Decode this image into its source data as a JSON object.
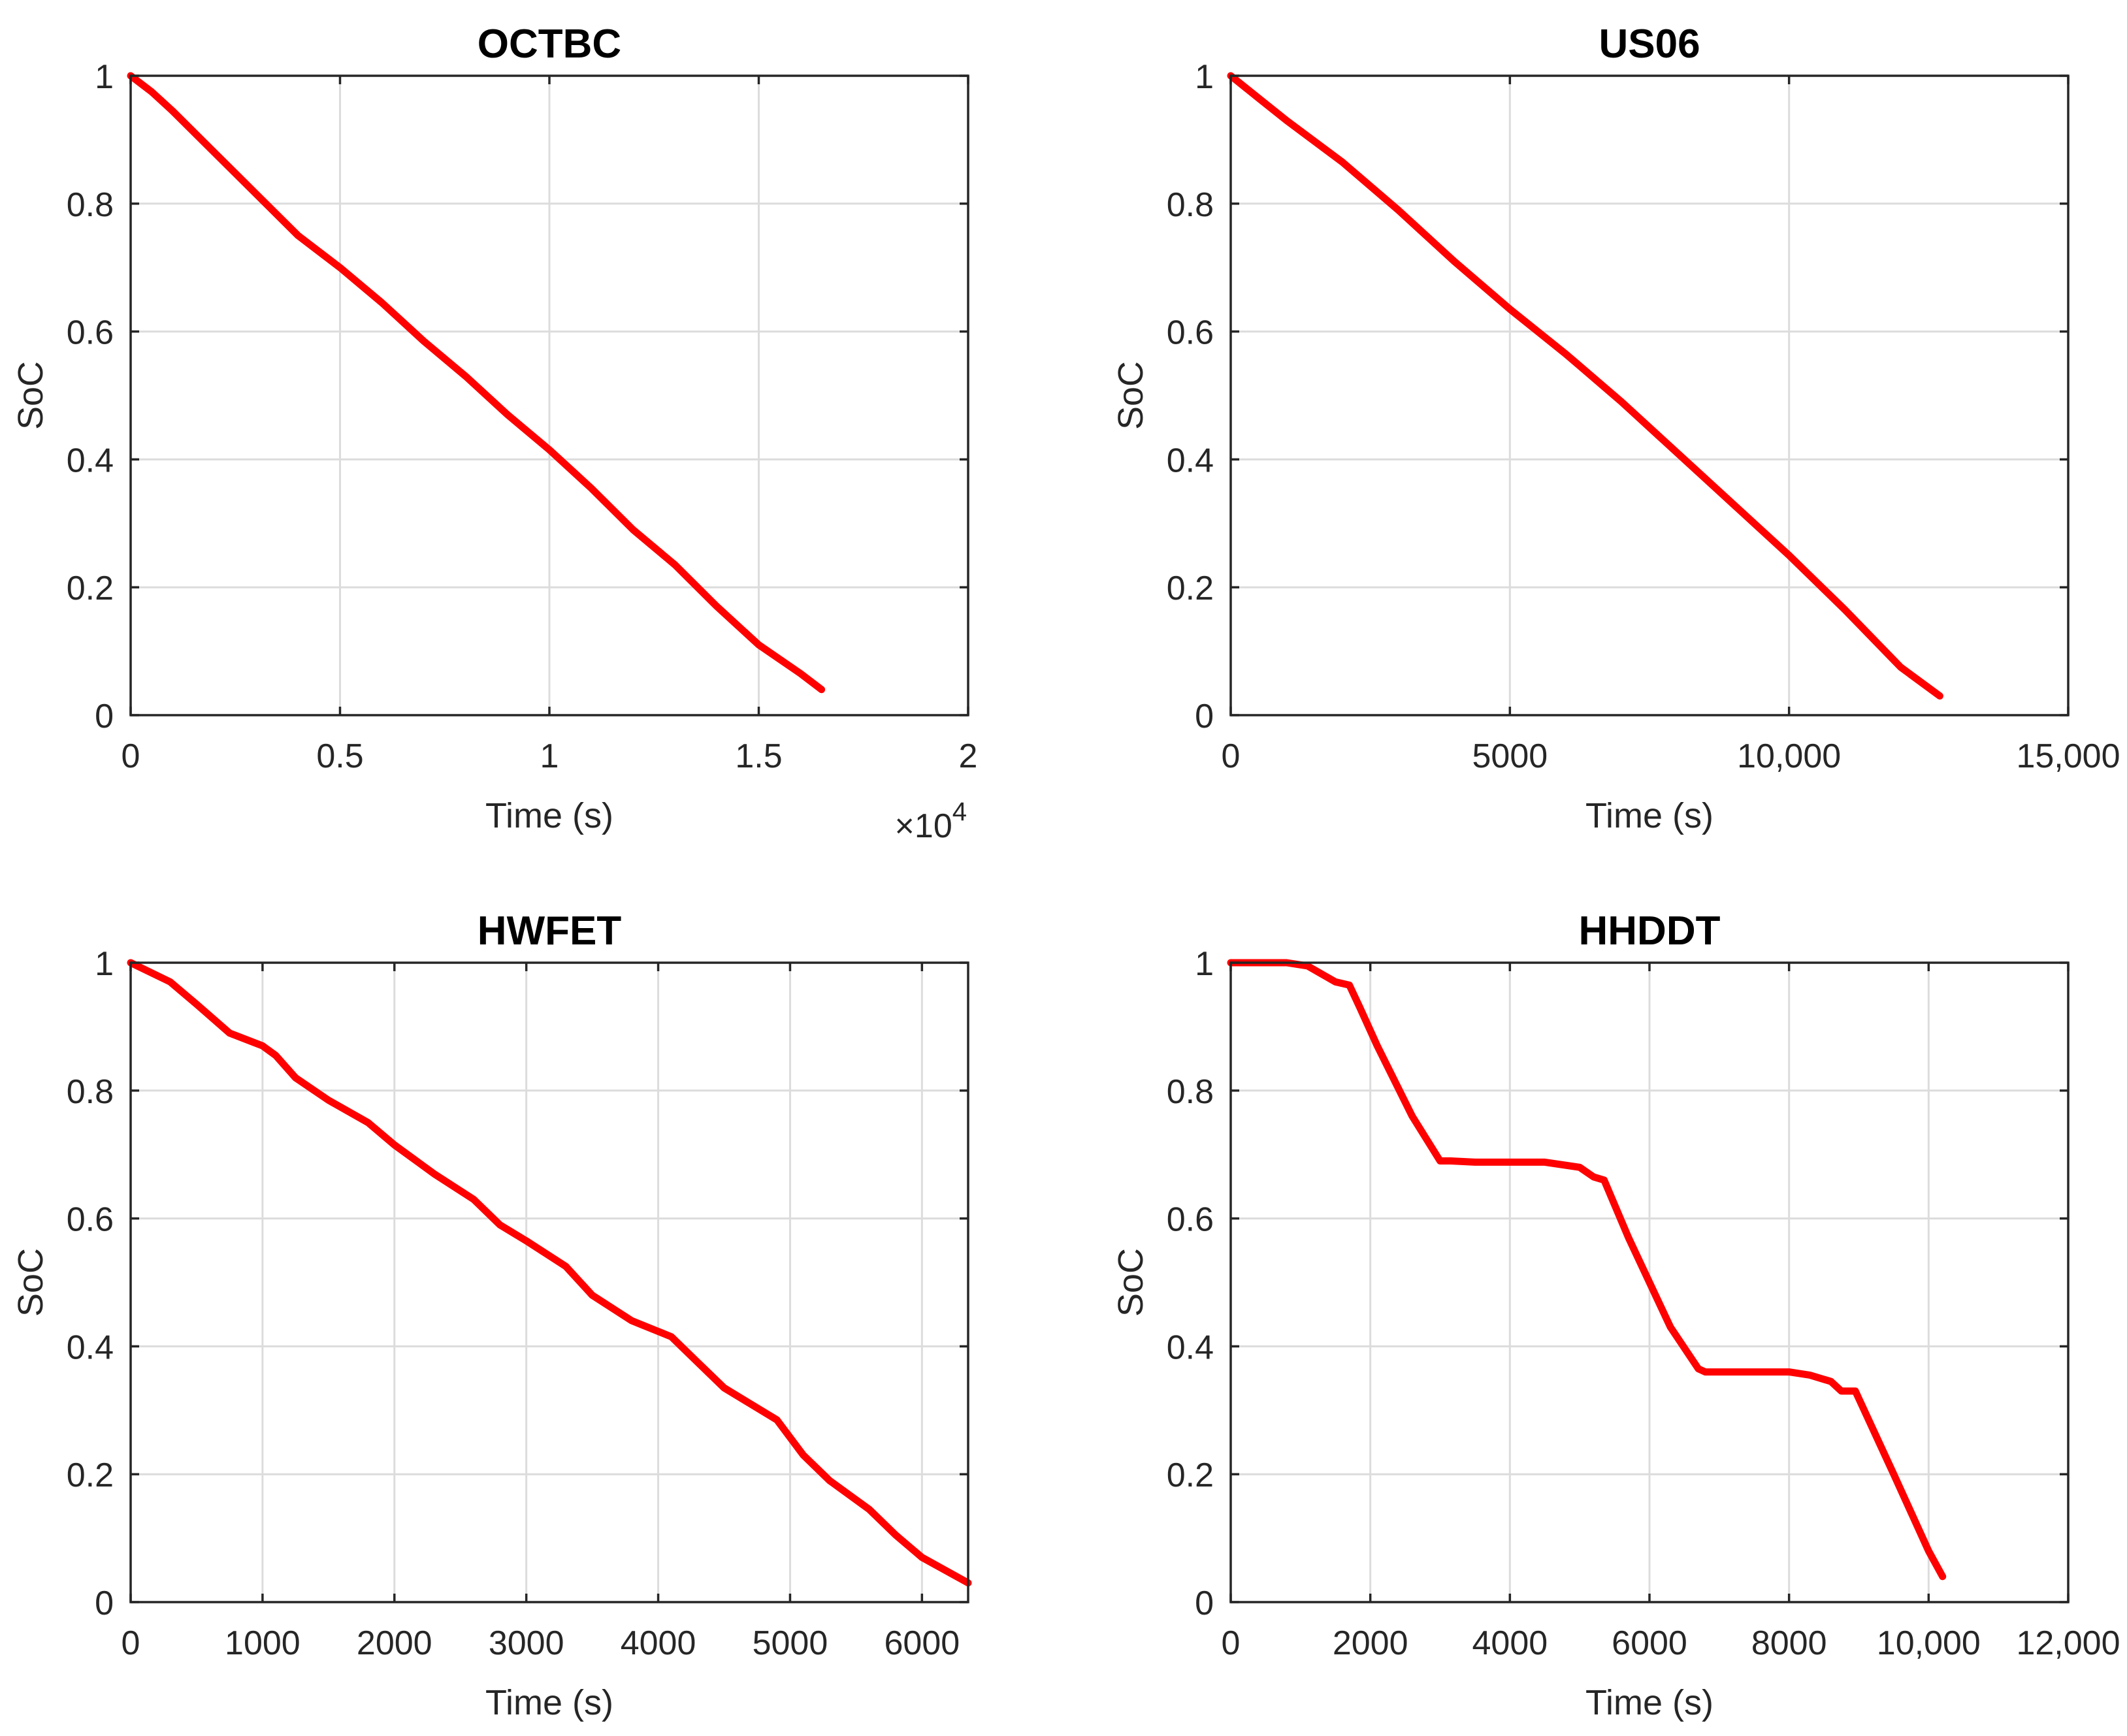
{
  "chart_data": [
    {
      "type": "line",
      "title": "OCTBC",
      "xlabel": "Time (s)",
      "ylabel": "SoC",
      "xlim": [
        0,
        20000
      ],
      "ylim": [
        0,
        1
      ],
      "x_ticks": [
        0,
        5000,
        10000,
        15000,
        20000
      ],
      "x_tick_labels": [
        "0",
        "0.5",
        "1",
        "1.5",
        "2"
      ],
      "x_exponent_label": "×10",
      "x_exponent_power": "4",
      "y_ticks": [
        0,
        0.2,
        0.4,
        0.6,
        0.8,
        1
      ],
      "y_tick_labels": [
        "0",
        "0.2",
        "0.4",
        "0.6",
        "0.8",
        "1"
      ],
      "grid": true,
      "color": "#ff0000",
      "series": [
        {
          "x": [
            0,
            500,
            1000,
            2000,
            3000,
            4000,
            5000,
            6000,
            7000,
            8000,
            9000,
            10000,
            11000,
            12000,
            13000,
            14000,
            15000,
            16000,
            16500
          ],
          "y": [
            1.0,
            0.975,
            0.945,
            0.88,
            0.815,
            0.75,
            0.7,
            0.645,
            0.585,
            0.53,
            0.47,
            0.415,
            0.355,
            0.29,
            0.235,
            0.17,
            0.11,
            0.065,
            0.04
          ]
        }
      ]
    },
    {
      "type": "line",
      "title": "US06",
      "xlabel": "Time (s)",
      "ylabel": "SoC",
      "xlim": [
        0,
        15000
      ],
      "ylim": [
        0,
        1
      ],
      "x_ticks": [
        0,
        5000,
        10000,
        15000
      ],
      "x_tick_labels": [
        "0",
        "5000",
        "10,000",
        "15,000"
      ],
      "y_ticks": [
        0,
        0.2,
        0.4,
        0.6,
        0.8,
        1
      ],
      "y_tick_labels": [
        "0",
        "0.2",
        "0.4",
        "0.6",
        "0.8",
        "1"
      ],
      "grid": true,
      "color": "#ff0000",
      "series": [
        {
          "x": [
            0,
            500,
            1000,
            2000,
            3000,
            4000,
            5000,
            6000,
            7000,
            8000,
            9000,
            10000,
            11000,
            12000,
            12700
          ],
          "y": [
            1.0,
            0.965,
            0.93,
            0.865,
            0.79,
            0.71,
            0.635,
            0.565,
            0.49,
            0.41,
            0.33,
            0.25,
            0.165,
            0.075,
            0.03
          ]
        }
      ]
    },
    {
      "type": "line",
      "title": "HWFET",
      "xlabel": "Time (s)",
      "ylabel": "SoC",
      "xlim": [
        0,
        6350
      ],
      "ylim": [
        0,
        1
      ],
      "x_ticks": [
        0,
        1000,
        2000,
        3000,
        4000,
        5000,
        6000
      ],
      "x_tick_labels": [
        "0",
        "1000",
        "2000",
        "3000",
        "4000",
        "5000",
        "6000"
      ],
      "y_ticks": [
        0,
        0.2,
        0.4,
        0.6,
        0.8,
        1
      ],
      "y_tick_labels": [
        "0",
        "0.2",
        "0.4",
        "0.6",
        "0.8",
        "1"
      ],
      "grid": true,
      "color": "#ff0000",
      "series": [
        {
          "x": [
            0,
            300,
            500,
            750,
            1000,
            1100,
            1250,
            1500,
            1800,
            2000,
            2300,
            2600,
            2800,
            3000,
            3300,
            3500,
            3800,
            4100,
            4300,
            4500,
            4900,
            5100,
            5300,
            5600,
            5800,
            6000,
            6350
          ],
          "y": [
            1.0,
            0.97,
            0.935,
            0.89,
            0.87,
            0.855,
            0.82,
            0.785,
            0.75,
            0.715,
            0.67,
            0.63,
            0.59,
            0.565,
            0.525,
            0.48,
            0.44,
            0.415,
            0.375,
            0.335,
            0.285,
            0.23,
            0.19,
            0.145,
            0.105,
            0.07,
            0.03
          ]
        }
      ]
    },
    {
      "type": "line",
      "title": "HHDDT",
      "xlabel": "Time (s)",
      "ylabel": "SoC",
      "xlim": [
        0,
        12000
      ],
      "ylim": [
        0,
        1
      ],
      "x_ticks": [
        0,
        2000,
        4000,
        6000,
        8000,
        10000,
        12000
      ],
      "x_tick_labels": [
        "0",
        "2000",
        "4000",
        "6000",
        "8000",
        "10,000",
        "12,000"
      ],
      "y_ticks": [
        0,
        0.2,
        0.4,
        0.6,
        0.8,
        1
      ],
      "y_tick_labels": [
        "0",
        "0.2",
        "0.4",
        "0.6",
        "0.8",
        "1"
      ],
      "grid": true,
      "color": "#ff0000",
      "series": [
        {
          "x": [
            0,
            800,
            1100,
            1500,
            1700,
            1850,
            2100,
            2600,
            3000,
            3150,
            3500,
            4000,
            4500,
            5000,
            5200,
            5350,
            5700,
            6300,
            6700,
            6800,
            7200,
            8000,
            8300,
            8600,
            8750,
            8950,
            9500,
            10000,
            10200
          ],
          "y": [
            1.0,
            1.0,
            0.995,
            0.97,
            0.965,
            0.93,
            0.87,
            0.76,
            0.69,
            0.69,
            0.688,
            0.688,
            0.688,
            0.68,
            0.665,
            0.66,
            0.57,
            0.43,
            0.365,
            0.36,
            0.36,
            0.36,
            0.355,
            0.345,
            0.33,
            0.33,
            0.2,
            0.08,
            0.04
          ]
        }
      ]
    }
  ]
}
